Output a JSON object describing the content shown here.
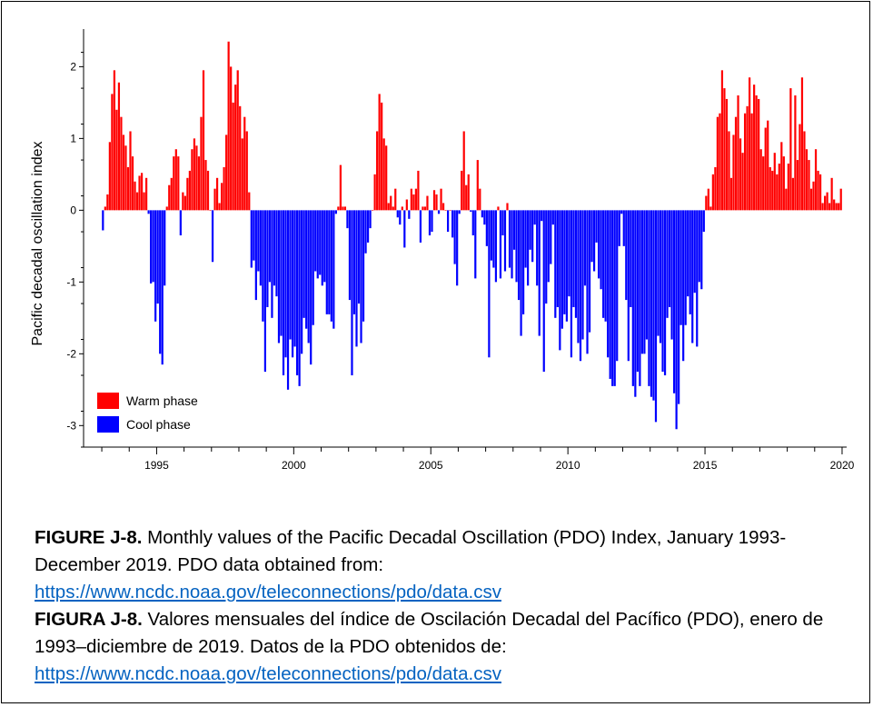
{
  "chart_data": {
    "type": "bar",
    "title": "",
    "xlabel": "",
    "ylabel": "Pacific decadal oscillation index",
    "ylim": [
      -3.3,
      2.6
    ],
    "yticks": [
      -3,
      -2,
      -1,
      0,
      1,
      2
    ],
    "xlim": [
      "1992-09",
      "2020-03"
    ],
    "xticks": [
      "1995",
      "2000",
      "2005",
      "2010",
      "2015",
      "2020"
    ],
    "grid": false,
    "legend": "bottom-left",
    "period": "1993-01 to 2019-12",
    "series": [
      {
        "name": "Warm phase",
        "color": "#ff0000",
        "rule": "value >= 0"
      },
      {
        "name": "Cool phase",
        "color": "#0000ff",
        "rule": "value < 0"
      }
    ],
    "months": [
      {
        "year": 1993,
        "values": [
          -0.28,
          0.05,
          0.22,
          0.95,
          1.62,
          1.95,
          1.4,
          1.78,
          1.3,
          1.05,
          0.9,
          0.6
        ]
      },
      {
        "year": 1994,
        "values": [
          1.1,
          0.75,
          0.4,
          0.25,
          0.48,
          0.52,
          0.25,
          0.45,
          -0.05,
          -1.02,
          -1.0,
          -1.55
        ]
      },
      {
        "year": 1995,
        "values": [
          -1.3,
          -2.0,
          -2.15,
          -1.05,
          0.05,
          0.35,
          0.45,
          0.75,
          0.85,
          0.75,
          -0.35,
          0.25
        ]
      },
      {
        "year": 1996,
        "values": [
          0.2,
          0.45,
          0.55,
          0.85,
          1.0,
          0.9,
          0.75,
          1.3,
          1.95,
          0.7,
          0.55,
          0.0
        ]
      },
      {
        "year": 1997,
        "values": [
          -0.72,
          0.3,
          0.45,
          0.1,
          0.38,
          0.6,
          1.05,
          2.35,
          2.0,
          1.5,
          1.75,
          1.95
        ]
      },
      {
        "year": 1998,
        "values": [
          1.45,
          1.0,
          1.3,
          1.1,
          0.25,
          -0.8,
          -0.7,
          -1.25,
          -0.85,
          -1.05,
          -1.55,
          -2.25
        ]
      },
      {
        "year": 1999,
        "values": [
          -1.35,
          -1.0,
          -1.5,
          -1.05,
          -1.2,
          -1.85,
          -1.75,
          -2.3,
          -2.05,
          -2.5,
          -1.8,
          -2.05
        ]
      },
      {
        "year": 2000,
        "values": [
          -1.9,
          -2.3,
          -2.45,
          -2.0,
          -1.5,
          -1.65,
          -1.85,
          -2.15,
          -1.6,
          -0.85,
          -0.95,
          -0.9
        ]
      },
      {
        "year": 2001,
        "values": [
          -1.05,
          -1.0,
          -1.45,
          -1.45,
          -1.55,
          -1.65,
          -0.05,
          0.05,
          0.63,
          0.05,
          0.05,
          -0.25
        ]
      },
      {
        "year": 2002,
        "values": [
          -1.25,
          -2.3,
          -1.45,
          -1.9,
          -1.3,
          -1.85,
          -1.55,
          -0.6,
          -0.45,
          -0.25,
          0.0,
          0.5
        ]
      },
      {
        "year": 2003,
        "values": [
          1.1,
          1.62,
          1.5,
          1.0,
          0.9,
          0.1,
          0.2,
          0.05,
          0.3,
          -0.1,
          -0.2,
          0.05
        ]
      },
      {
        "year": 2004,
        "values": [
          -0.52,
          0.15,
          -0.12,
          0.3,
          0.22,
          0.3,
          0.55,
          -0.45,
          0.05,
          0.05,
          0.2,
          -0.35
        ]
      },
      {
        "year": 2005,
        "values": [
          -0.3,
          0.28,
          0.22,
          -0.05,
          0.3,
          0.1,
          0.0,
          -0.3,
          0.0,
          -0.38,
          -0.75,
          -1.05
        ]
      },
      {
        "year": 2006,
        "values": [
          -0.05,
          0.55,
          1.1,
          0.35,
          0.5,
          -0.02,
          -0.35,
          -0.95,
          0.7,
          0.3,
          -0.1,
          -0.2
        ]
      },
      {
        "year": 2007,
        "values": [
          -0.5,
          -2.05,
          -0.7,
          -0.8,
          -1.0,
          0.05,
          -0.95,
          -0.35,
          -0.85,
          0.1,
          -0.8,
          -0.95
        ]
      },
      {
        "year": 2008,
        "values": [
          -0.55,
          -1.0,
          -1.25,
          -1.75,
          -1.45,
          -0.8,
          -1.05,
          -0.55,
          -0.72,
          -0.2,
          -1.05,
          -1.75
        ]
      },
      {
        "year": 2009,
        "values": [
          -0.15,
          -2.25,
          -1.3,
          -1.0,
          -0.75,
          -0.2,
          -1.5,
          -1.35,
          -1.95,
          -1.65,
          -1.45,
          -1.55
        ]
      },
      {
        "year": 2010,
        "values": [
          -1.2,
          -2.05,
          -1.35,
          -1.5,
          -1.85,
          -2.1,
          -1.8,
          -1.05,
          -2.0,
          -1.7,
          -0.72,
          -0.85
        ]
      },
      {
        "year": 2011,
        "values": [
          -0.45,
          -0.95,
          -1.1,
          -1.5,
          -1.55,
          -2.05,
          -2.35,
          -2.45,
          -2.45,
          -2.1,
          -0.5,
          -0.05
        ]
      },
      {
        "year": 2012,
        "values": [
          -0.5,
          -1.25,
          -2.1,
          -1.35,
          -2.45,
          -2.6,
          -2.25,
          -2.45,
          -2.0,
          -2.0,
          -1.8,
          -2.45
        ]
      },
      {
        "year": 2013,
        "values": [
          -2.6,
          -2.65,
          -2.95,
          -1.75,
          -1.85,
          -2.25,
          -2.3,
          -1.5,
          -1.35,
          -1.8,
          -2.55,
          -3.05
        ]
      },
      {
        "year": 2014,
        "values": [
          -2.7,
          -1.6,
          -2.1,
          -1.6,
          -1.2,
          -1.45,
          -1.85,
          -1.15,
          -1.9,
          -1.0,
          -1.1,
          -0.3
        ]
      },
      {
        "year": 2015,
        "values": [
          0.2,
          0.3,
          0.05,
          0.5,
          0.6,
          1.3,
          1.35,
          1.95,
          1.7,
          1.55,
          1.1,
          0.45
        ]
      },
      {
        "year": 2016,
        "values": [
          1.05,
          1.3,
          1.6,
          1.0,
          0.8,
          1.35,
          1.45,
          1.85,
          1.35,
          1.75,
          1.6,
          1.55
        ]
      },
      {
        "year": 2017,
        "values": [
          0.85,
          0.75,
          1.15,
          1.25,
          0.6,
          0.55,
          0.8,
          0.5,
          0.65,
          0.95,
          0.75,
          0.3
        ]
      },
      {
        "year": 2018,
        "values": [
          0.65,
          1.7,
          0.45,
          1.6,
          0.7,
          1.2,
          1.85,
          1.1,
          0.85,
          0.7,
          0.3,
          0.4
        ]
      },
      {
        "year": 2019,
        "values": [
          0.85,
          0.55,
          0.5,
          0.1,
          0.2,
          0.25,
          0.1,
          0.45,
          0.15,
          0.1,
          0.1,
          0.3
        ]
      }
    ]
  },
  "caption": {
    "en_label": "FIGURE J-8.",
    "en_text": " Monthly values of the Pacific Decadal Oscillation (PDO) Index, January 1993-December 2019. PDO data obtained from:",
    "en_link": "https://www.ncdc.noaa.gov/teleconnections/pdo/data.csv",
    "es_label": "FIGURA J-8.",
    "es_text": " Valores mensuales del índice de Oscilación Decadal del Pacífico (PDO), enero de 1993–diciembre de 2019. Datos de la PDO obtenidos de:",
    "es_link": "https://www.ncdc.noaa.gov/teleconnections/pdo/data.csv"
  },
  "colors": {
    "warm": "#ff0000",
    "cool": "#0000ff",
    "link": "#0563c1"
  }
}
